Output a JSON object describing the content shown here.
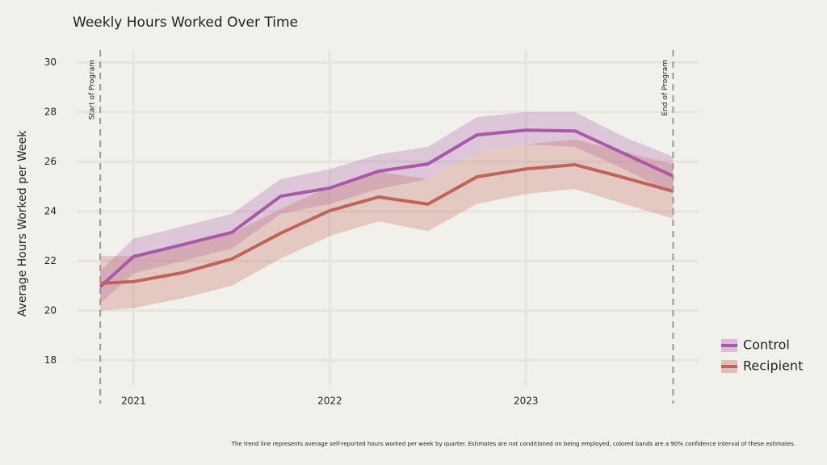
{
  "chart_data": {
    "type": "line",
    "title": "Weekly Hours Worked Over Time",
    "y_label": "Average Hours Worked per Week",
    "footnote": "The trend line represents average self-reported hours worked per week by quarter. Estimates are not conditioned on being employed, colored bands are a 90% confidence interval of these estimates.",
    "x": [
      2020.83,
      2021.0,
      2021.25,
      2021.5,
      2021.75,
      2022.0,
      2022.25,
      2022.5,
      2022.75,
      2023.0,
      2023.25,
      2023.5,
      2023.75
    ],
    "series": [
      {
        "name": "Control",
        "color": "#a85aa8",
        "values": [
          20.97,
          22.18,
          22.66,
          23.15,
          24.61,
          24.94,
          25.62,
          25.91,
          27.08,
          27.27,
          27.24,
          26.33,
          25.42
        ],
        "lower": [
          20.3,
          21.5,
          22.0,
          22.5,
          23.9,
          24.3,
          24.9,
          25.3,
          26.4,
          26.7,
          26.6,
          25.7,
          24.7
        ],
        "upper": [
          21.6,
          22.9,
          23.4,
          23.9,
          25.3,
          25.7,
          26.3,
          26.6,
          27.8,
          28.0,
          28.0,
          27.0,
          26.2
        ]
      },
      {
        "name": "Recipient",
        "color": "#c0645a",
        "values": [
          21.1,
          21.17,
          21.53,
          22.08,
          23.12,
          24.03,
          24.58,
          24.29,
          25.39,
          25.71,
          25.88,
          25.36,
          24.81
        ],
        "lower": [
          20.0,
          20.1,
          20.5,
          21.0,
          22.1,
          23.0,
          23.6,
          23.2,
          24.3,
          24.7,
          24.9,
          24.3,
          23.7
        ],
        "upper": [
          22.2,
          22.2,
          22.6,
          23.1,
          24.1,
          25.0,
          25.6,
          25.3,
          26.4,
          26.7,
          26.9,
          26.4,
          25.9
        ]
      }
    ],
    "annotations": [
      {
        "x": 2020.83,
        "label": "Start of Program"
      },
      {
        "x": 2023.75,
        "label": "End of Program"
      }
    ],
    "xlim": [
      2020.71,
      2023.88
    ],
    "xticks": [
      2021,
      2022,
      2023
    ],
    "ylim": [
      17,
      30.5
    ],
    "yticks": [
      18,
      20,
      22,
      24,
      26,
      28,
      30
    ],
    "grid": true,
    "legend": "right"
  }
}
